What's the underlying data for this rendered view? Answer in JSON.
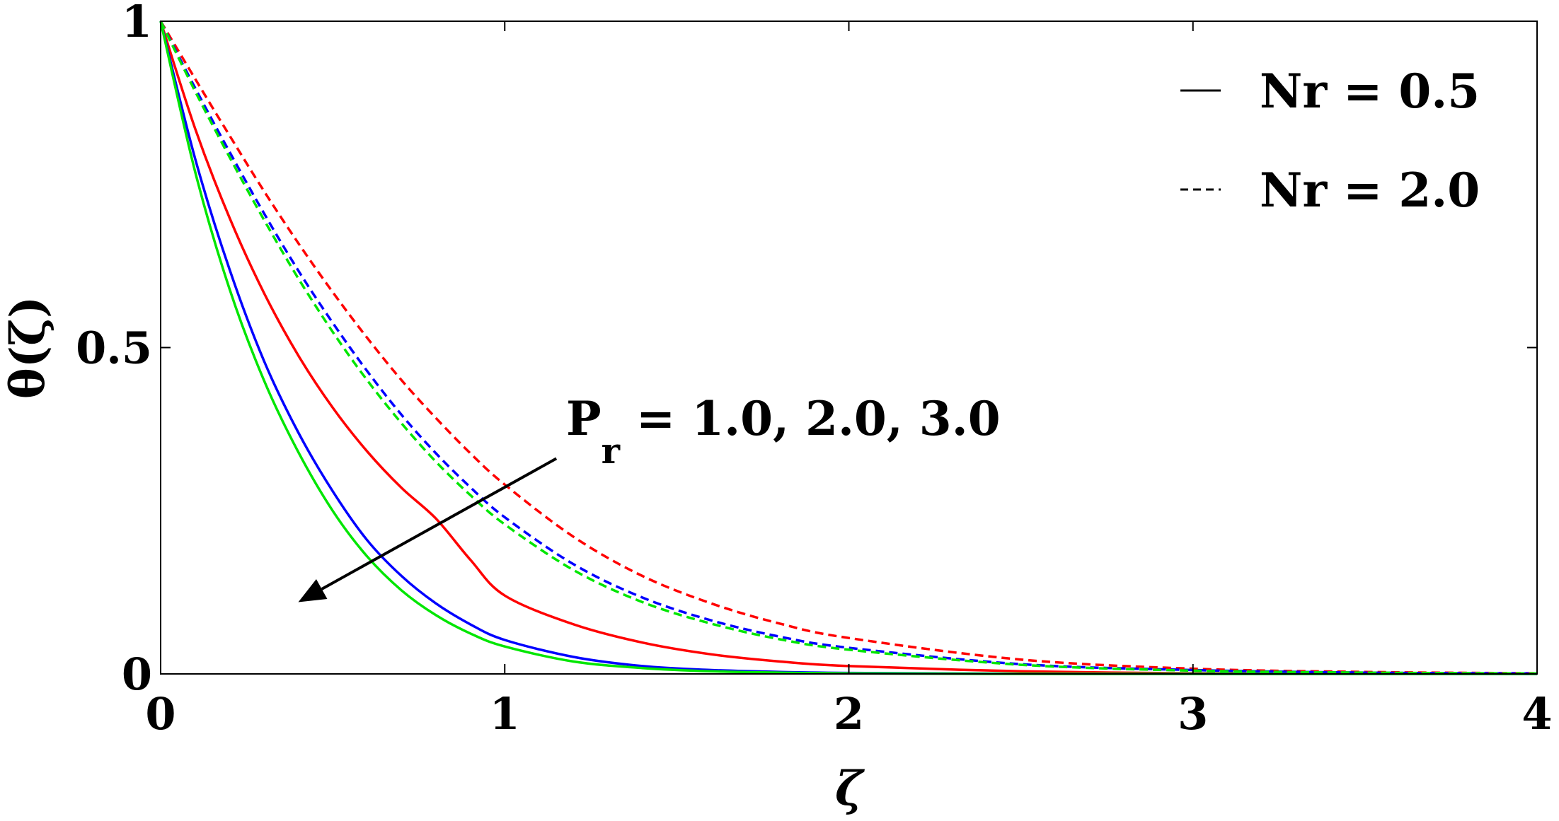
{
  "chart_data": {
    "type": "line",
    "title": "",
    "xlabel": "ζ",
    "ylabel": "θ(ζ)",
    "xlim": [
      0,
      4
    ],
    "ylim": [
      0,
      1
    ],
    "xticks": [
      0,
      1,
      2,
      3,
      4
    ],
    "xtick_labels": [
      "0",
      "1",
      "2",
      "3",
      "4"
    ],
    "yticks": [
      0,
      0.5,
      1
    ],
    "ytick_labels": [
      "0",
      "0.5",
      "1"
    ],
    "grid": false,
    "legend": {
      "placement": "top-right",
      "entries": [
        {
          "label": "Nr = 0.5",
          "style": "solid"
        },
        {
          "label": "Nr = 2.0",
          "style": "dashed"
        }
      ]
    },
    "annotation": {
      "text_main": "P",
      "text_sub": "r",
      "text_rest": " = 1.0, 2.0, 3.0",
      "arrow_from": [
        1.15,
        0.33
      ],
      "arrow_to": [
        0.4,
        0.11
      ]
    },
    "x": [
      0,
      0.1,
      0.2,
      0.3,
      0.4,
      0.5,
      0.6,
      0.7,
      0.8,
      0.9,
      1.0,
      1.2,
      1.4,
      1.6,
      1.8,
      2.0,
      2.5,
      3.0,
      3.5,
      4.0
    ],
    "series": [
      {
        "color": "#ff0000",
        "style": "solid",
        "values": [
          1,
          0.836,
          0.699,
          0.584,
          0.488,
          0.408,
          0.341,
          0.285,
          0.238,
          0.175,
          0.12,
          0.076,
          0.048,
          0.03,
          0.019,
          0.012,
          0.004,
          0.001,
          0.0003,
          0.0001
        ]
      },
      {
        "color": "#0000ff",
        "style": "solid",
        "values": [
          1,
          0.79,
          0.62,
          0.48,
          0.37,
          0.28,
          0.205,
          0.15,
          0.108,
          0.076,
          0.052,
          0.026,
          0.012,
          0.006,
          0.003,
          0.0015,
          0.0003,
          0.0001,
          0.0,
          0.0
        ]
      },
      {
        "color": "#00e600",
        "style": "solid",
        "values": [
          1,
          0.77,
          0.59,
          0.45,
          0.34,
          0.25,
          0.18,
          0.128,
          0.09,
          0.062,
          0.042,
          0.019,
          0.009,
          0.004,
          0.002,
          0.0008,
          0.0001,
          0.0,
          0.0,
          0.0
        ]
      },
      {
        "color": "#ff0000",
        "style": "dashed",
        "values": [
          1,
          0.912,
          0.825,
          0.74,
          0.66,
          0.585,
          0.515,
          0.45,
          0.392,
          0.338,
          0.29,
          0.21,
          0.15,
          0.108,
          0.077,
          0.055,
          0.022,
          0.008,
          0.003,
          0.001
        ]
      },
      {
        "color": "#0000ff",
        "style": "dashed",
        "values": [
          1,
          0.898,
          0.8,
          0.706,
          0.618,
          0.538,
          0.464,
          0.397,
          0.338,
          0.286,
          0.24,
          0.168,
          0.117,
          0.082,
          0.057,
          0.04,
          0.015,
          0.006,
          0.002,
          0.0007
        ]
      },
      {
        "color": "#00e600",
        "style": "dashed",
        "values": [
          1,
          0.893,
          0.792,
          0.696,
          0.606,
          0.524,
          0.45,
          0.384,
          0.325,
          0.274,
          0.229,
          0.159,
          0.11,
          0.077,
          0.053,
          0.037,
          0.014,
          0.005,
          0.002,
          0.0006
        ]
      }
    ]
  }
}
